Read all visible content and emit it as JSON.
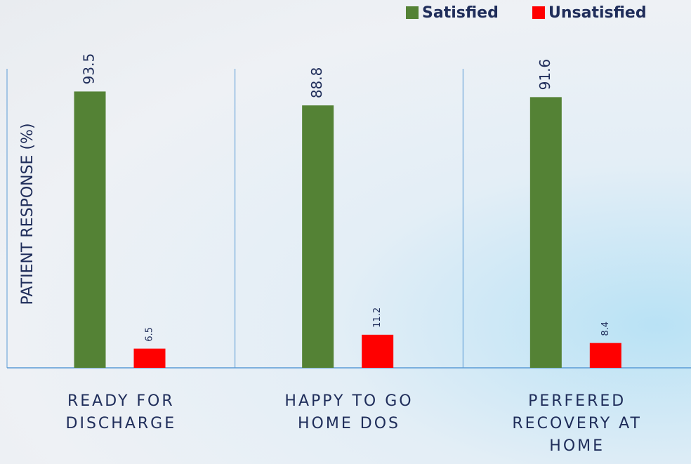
{
  "chart_data": {
    "type": "bar",
    "y_label": "PATIENT RESPONSE (%)",
    "categories": [
      "READY FOR DISCHARGE",
      "HAPPY TO GO HOME DOS",
      "PERFERED RECOVERY AT HOME"
    ],
    "series": [
      {
        "name": "Satisfied",
        "color": "#548235",
        "values": [
          93.5,
          88.8,
          91.6
        ]
      },
      {
        "name": "Unsatisfied",
        "color": "#ff0000",
        "values": [
          6.5,
          11.2,
          8.4
        ]
      }
    ],
    "ylim": [
      0,
      100
    ]
  }
}
